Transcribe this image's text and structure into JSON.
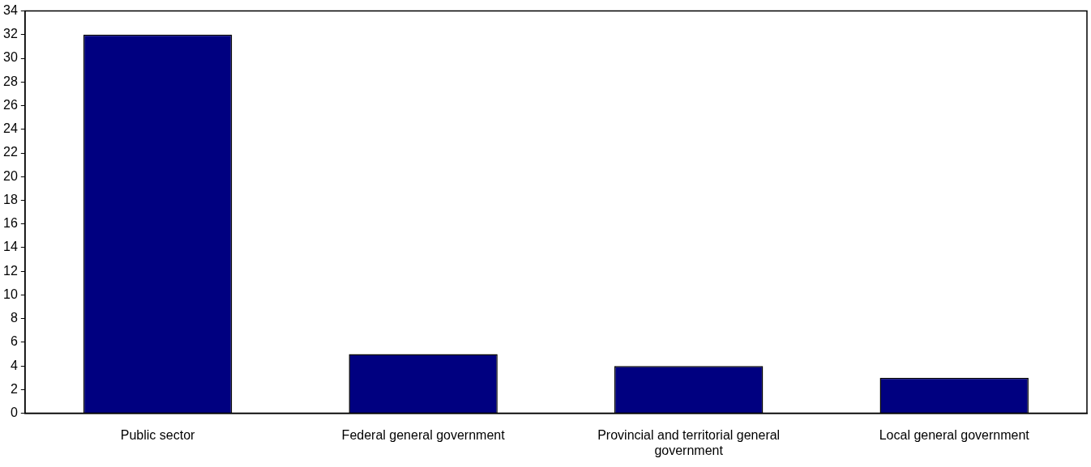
{
  "chart_data": {
    "type": "bar",
    "categories": [
      "Public sector",
      "Federal general government",
      "Provincial and territorial general government",
      "Local general government"
    ],
    "values": [
      32,
      5,
      4,
      3
    ],
    "color": "#000080",
    "ylim": [
      0,
      34
    ],
    "yticks": [
      0,
      2,
      4,
      6,
      8,
      10,
      12,
      14,
      16,
      18,
      20,
      22,
      24,
      26,
      28,
      30,
      32,
      34
    ],
    "grid": false,
    "legend": false
  }
}
